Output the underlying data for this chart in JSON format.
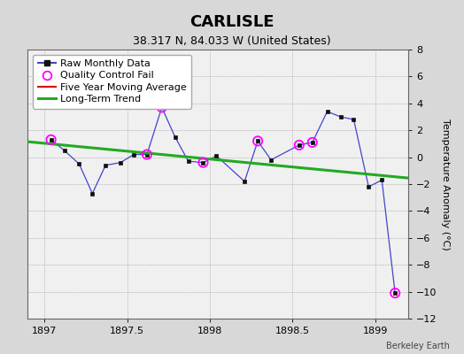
{
  "title": "CARLISLE",
  "subtitle": "38.317 N, 84.033 W (United States)",
  "ylabel": "Temperature Anomaly (°C)",
  "attribution": "Berkeley Earth",
  "ylim": [
    -12,
    8
  ],
  "xlim": [
    1896.9,
    1899.2
  ],
  "yticks": [
    -12,
    -10,
    -8,
    -6,
    -4,
    -2,
    0,
    2,
    4,
    6,
    8
  ],
  "xticks": [
    1897,
    1897.5,
    1898,
    1898.5,
    1899
  ],
  "xtick_labels": [
    "1897",
    "1897.5",
    "1898",
    "1898.5",
    "1899"
  ],
  "plot_bg": "#f0f0f0",
  "outer_bg": "#d8d8d8",
  "raw_x": [
    1897.04,
    1897.12,
    1897.21,
    1897.29,
    1897.37,
    1897.46,
    1897.54,
    1897.62,
    1897.71,
    1897.79,
    1897.87,
    1897.96,
    1898.04,
    1898.21,
    1898.29,
    1898.37,
    1898.54,
    1898.62,
    1898.71,
    1898.79,
    1898.87,
    1898.96,
    1899.04,
    1899.12
  ],
  "raw_y": [
    1.3,
    0.5,
    -0.5,
    -2.7,
    -0.6,
    -0.4,
    0.2,
    0.2,
    3.7,
    1.5,
    -0.3,
    -0.4,
    0.1,
    -1.8,
    1.2,
    -0.2,
    0.9,
    1.1,
    3.4,
    3.0,
    2.8,
    -2.2,
    -1.7,
    -10.1
  ],
  "qc_fail_x": [
    1897.04,
    1897.62,
    1897.71,
    1897.96,
    1898.29,
    1898.54,
    1898.62,
    1899.12
  ],
  "qc_fail_y": [
    1.3,
    0.2,
    3.7,
    -0.4,
    1.2,
    0.9,
    1.1,
    -10.1
  ],
  "trend_x": [
    1896.9,
    1899.2
  ],
  "trend_y": [
    1.15,
    -1.55
  ],
  "line_color": "#4444cc",
  "marker_color": "#111111",
  "qc_color": "#ff00ff",
  "trend_color": "#22aa22",
  "moving_avg_color": "#dd0000",
  "title_fontsize": 13,
  "subtitle_fontsize": 9,
  "axis_label_fontsize": 8,
  "tick_fontsize": 8,
  "legend_fontsize": 8
}
